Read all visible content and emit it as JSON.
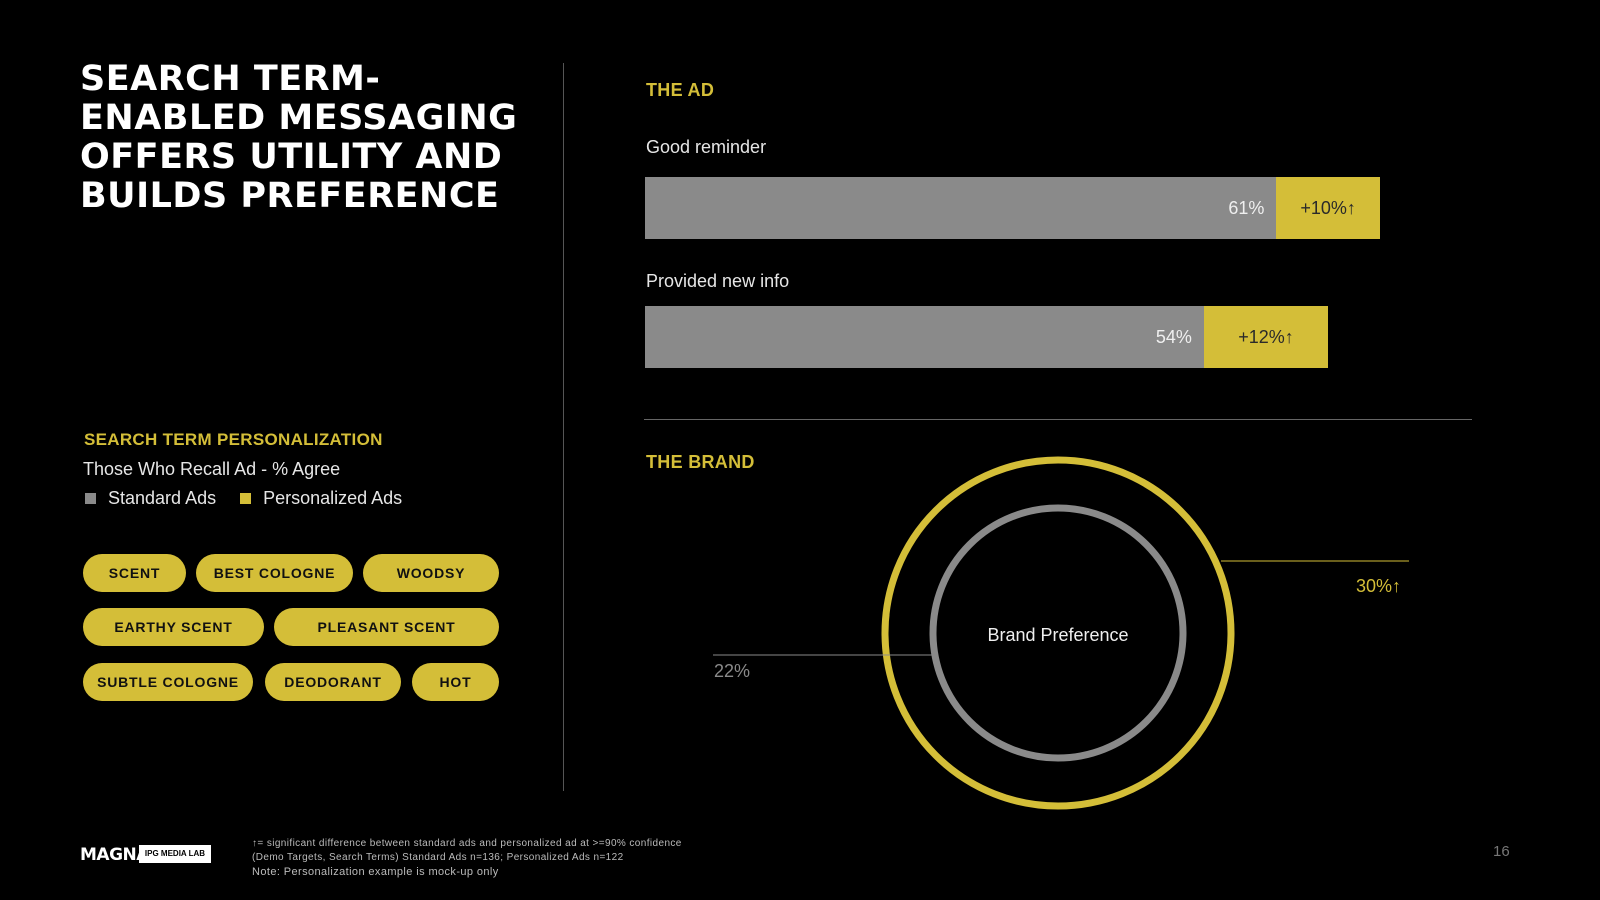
{
  "title": "SEARCH TERM-ENABLED MESSAGING OFFERS UTILITY AND BUILDS PREFERENCE",
  "the_ad_label": "THE AD",
  "the_brand_label": "THE BRAND",
  "legend": {
    "title": "SEARCH TERM PERSONALIZATION",
    "subtitle": "Those Who Recall Ad - % Agree",
    "standard": "Standard Ads",
    "personalized": "Personalized Ads"
  },
  "pills": [
    "SCENT",
    "BEST COLOGNE",
    "WOODSY",
    "EARTHY SCENT",
    "PLEASANT SCENT",
    "SUBTLE COLOGNE",
    "DEODORANT",
    "HOT"
  ],
  "colors": {
    "standard": "#8a8a8a",
    "personalized": "#d4be38",
    "background": "#000000"
  },
  "chart_data": [
    {
      "type": "bar",
      "orientation": "horizontal-stacked",
      "categories": [
        "Good reminder",
        "Provided new info"
      ],
      "series": [
        {
          "name": "Standard Ads",
          "values": [
            61,
            54
          ],
          "labels": [
            "61%",
            "54%"
          ]
        },
        {
          "name": "Personalized Ads lift",
          "values": [
            10,
            12
          ],
          "labels": [
            "+10%↑",
            "+12%↑"
          ]
        }
      ],
      "xlim": [
        0,
        100
      ],
      "title": "THE AD"
    },
    {
      "type": "pie",
      "style": "concentric-rings",
      "title": "THE BRAND",
      "center_label": "Brand Preference",
      "series": [
        {
          "name": "Standard Ads",
          "value": 22,
          "label": "22%"
        },
        {
          "name": "Personalized Ads",
          "value": 30,
          "label": "30%↑"
        }
      ]
    }
  ],
  "footer": {
    "line1": "↑= significant difference between standard ads and personalized ad at >=90% confidence",
    "line2": "(Demo Targets, Search Terms) Standard Ads n=136; Personalized Ads n=122",
    "line3": "Note: Personalization example is mock-up only",
    "logo": "MAGNA",
    "logo_secondary": "IPG MEDIA LAB",
    "page_number": "16"
  }
}
